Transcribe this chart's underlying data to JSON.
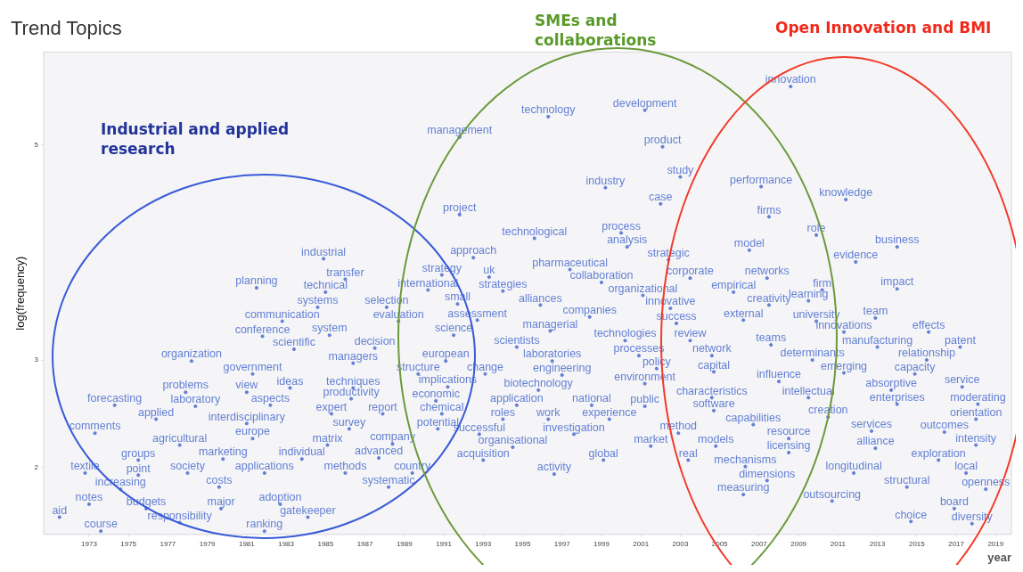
{
  "chart_data": {
    "type": "scatter",
    "title": "Trend Topics",
    "xlabel": "year",
    "ylabel": "log(frequency)",
    "xlim": [
      1970.7,
      2019.8
    ],
    "xticks": [
      1973,
      1975,
      1977,
      1979,
      1981,
      1983,
      1985,
      1987,
      1989,
      1991,
      1993,
      1995,
      1997,
      1999,
      2001,
      2003,
      2005,
      2007,
      2009,
      2011,
      2013,
      2015,
      2017,
      2019
    ],
    "ylim": [
      1.38,
      5.86
    ],
    "yticks": [
      2,
      3,
      5
    ],
    "grid": false,
    "legend": false,
    "marker": "circle",
    "annotations": [
      "Industrial and applied research",
      "SMEs and collaborations",
      "Open Innovation and BMI"
    ],
    "series": [
      {
        "color": "#6480d4",
        "x": [
          2008.6,
          1996.3,
          2001.2,
          1991.8,
          2002.1,
          2003,
          1999.2,
          2007.1,
          2011.4,
          2002,
          1991.8,
          2007.5,
          2000,
          2009.9,
          1995.6,
          2000.3,
          2014,
          2006.5,
          1984.9,
          1992.5,
          2002.4,
          2011.9,
          1997.4,
          1986,
          1990.9,
          1993.3,
          2003.5,
          2007.4,
          1999,
          1981.5,
          1985,
          1990.2,
          1994,
          2005.7,
          2010.2,
          2014,
          2001.1,
          1991.7,
          1984.6,
          1988.1,
          1995.9,
          2002.5,
          2007.5,
          2009.5,
          1982.8,
          1988.7,
          1992.7,
          1998.4,
          2002.8,
          2006.2,
          2009.9,
          2012.9,
          1981.8,
          1985.2,
          1991.5,
          1996.4,
          2000.2,
          2003.5,
          2011.3,
          2015.6,
          2007.6,
          2013,
          2017.2,
          1983.4,
          1987.5,
          1994.7,
          2000.9,
          2004.6,
          2009.7,
          2015.5,
          1978.2,
          1986.4,
          1991.1,
          1996.5,
          2001.8,
          2004.7,
          1981.3,
          1989.7,
          1993.1,
          1997,
          2011.3,
          2014.9,
          2008,
          1983.2,
          1986.4,
          1991.2,
          2001.2,
          1995.8,
          2013.7,
          2017.3,
          1977.9,
          1981,
          1986.3,
          1990.6,
          2004.6,
          2009.5,
          1974.3,
          1978.4,
          1982.2,
          1994.7,
          1998.5,
          2001.2,
          2004.7,
          2014,
          2018.1,
          1985.3,
          1987.9,
          1990.9,
          1976.4,
          1994,
          1996.3,
          1999.4,
          2010.5,
          2018,
          1981,
          2006.7,
          1986.2,
          1990.7,
          1973.3,
          1981.3,
          1992.8,
          1997.6,
          2002.9,
          2008.5,
          2012.7,
          2016.4,
          1977.6,
          1985.1,
          1988.4,
          1994.5,
          2001.5,
          2004.8,
          2008.5,
          2012.9,
          2018,
          1975.5,
          1979.8,
          1983.8,
          1987.7,
          1993,
          1999.1,
          2003.4,
          2006.3,
          2016.1,
          1972.8,
          1975.5,
          1978,
          1981.9,
          1986,
          1989.4,
          1996.6,
          2011.8,
          2017.5,
          2007.4,
          1974.6,
          1979.6,
          1988.2,
          2014.5,
          2018.5,
          2006.2,
          2010.7,
          1973,
          1975.9,
          1979.7,
          1982.7,
          2016.9,
          1984.1,
          1971.5,
          1977.6,
          2014.7,
          2017.8,
          1973.6,
          1981.9
        ],
        "values": [
          5.54,
          5.26,
          5.32,
          5.07,
          4.98,
          4.7,
          4.6,
          4.61,
          4.49,
          4.45,
          4.35,
          4.33,
          4.18,
          4.16,
          4.13,
          4.05,
          4.05,
          4.02,
          3.94,
          3.95,
          3.93,
          3.91,
          3.84,
          3.75,
          3.79,
          3.77,
          3.76,
          3.76,
          3.72,
          3.67,
          3.63,
          3.65,
          3.64,
          3.63,
          3.65,
          3.66,
          3.6,
          3.52,
          3.49,
          3.49,
          3.51,
          3.48,
          3.51,
          3.55,
          3.36,
          3.36,
          3.37,
          3.4,
          3.34,
          3.37,
          3.36,
          3.39,
          3.22,
          3.23,
          3.23,
          3.27,
          3.18,
          3.18,
          3.26,
          3.26,
          3.14,
          3.12,
          3.12,
          3.1,
          3.11,
          3.12,
          3.04,
          3.04,
          3.0,
          3.0,
          2.99,
          2.97,
          2.99,
          2.99,
          2.92,
          2.89,
          2.87,
          2.87,
          2.87,
          2.86,
          2.88,
          2.87,
          2.8,
          2.74,
          2.74,
          2.75,
          2.78,
          2.72,
          2.72,
          2.75,
          2.7,
          2.7,
          2.64,
          2.62,
          2.65,
          2.65,
          2.58,
          2.57,
          2.58,
          2.58,
          2.58,
          2.57,
          2.53,
          2.59,
          2.59,
          2.5,
          2.5,
          2.5,
          2.45,
          2.45,
          2.45,
          2.45,
          2.47,
          2.45,
          2.41,
          2.4,
          2.36,
          2.36,
          2.32,
          2.27,
          2.31,
          2.31,
          2.32,
          2.27,
          2.34,
          2.33,
          2.21,
          2.21,
          2.22,
          2.19,
          2.2,
          2.2,
          2.14,
          2.18,
          2.21,
          2.07,
          2.08,
          2.08,
          2.09,
          2.07,
          2.07,
          2.07,
          2.01,
          2.07,
          1.95,
          1.93,
          1.95,
          1.95,
          1.95,
          1.95,
          1.94,
          1.95,
          1.95,
          1.88,
          1.8,
          1.82,
          1.82,
          1.82,
          1.8,
          1.75,
          1.69,
          1.66,
          1.62,
          1.62,
          1.66,
          1.62,
          1.54,
          1.54,
          1.49,
          1.5,
          1.48,
          1.41,
          1.41
        ],
        "value_labels": [
          "innovation",
          "technology",
          "development",
          "management",
          "product",
          "study",
          "industry",
          "performance",
          "knowledge",
          "case",
          "project",
          "firms",
          "process",
          "role",
          "technological",
          "analysis",
          "business",
          "model",
          "industrial",
          "approach",
          "strategic",
          "evidence",
          "pharmaceutical",
          "transfer",
          "strategy",
          "uk",
          "corporate",
          "networks",
          "collaboration",
          "planning",
          "technical",
          "international",
          "strategies",
          "empirical",
          "firm",
          "impact",
          "organizational",
          "small",
          "systems",
          "selection",
          "alliances",
          "innovative",
          "creativity",
          "learning",
          "communication",
          "evaluation",
          "assessment",
          "companies",
          "success",
          "external",
          "university",
          "team",
          "conference",
          "system",
          "science",
          "managerial",
          "technologies",
          "review",
          "innovations",
          "effects",
          "teams",
          "manufacturing",
          "patent",
          "scientific",
          "decision",
          "scientists",
          "processes",
          "network",
          "determinants",
          "relationship",
          "organization",
          "managers",
          "european",
          "laboratories",
          "policy",
          "capital",
          "government",
          "structure",
          "change",
          "engineering",
          "emerging",
          "capacity",
          "influence",
          "ideas",
          "techniques",
          "implications",
          "environment",
          "biotechnology",
          "absorptive",
          "service",
          "problems",
          "view",
          "productivity",
          "economic",
          "characteristics",
          "intellectual",
          "forecasting",
          "laboratory",
          "aspects",
          "application",
          "national",
          "public",
          "software",
          "enterprises",
          "moderating",
          "expert",
          "report",
          "chemical",
          "applied",
          "roles",
          "work",
          "experience",
          "creation",
          "orientation",
          "interdisciplinary",
          "capabilities",
          "survey",
          "potential",
          "comments",
          "europe",
          "successful",
          "investigation",
          "method",
          "resource",
          "services",
          "outcomes",
          "agricultural",
          "matrix",
          "company",
          "organisational",
          "market",
          "models",
          "licensing",
          "alliance",
          "intensity",
          "groups",
          "marketing",
          "individual",
          "advanced",
          "acquisition",
          "global",
          "real",
          "mechanisms",
          "exploration",
          "textile",
          "point",
          "society",
          "applications",
          "methods",
          "country",
          "activity",
          "longitudinal",
          "local",
          "dimensions",
          "increasing",
          "costs",
          "systematic",
          "structural",
          "openness",
          "measuring",
          "outsourcing",
          "notes",
          "budgets",
          "major",
          "adoption",
          "board",
          "gatekeeper",
          "aid",
          "responsibility",
          "choice",
          "diversity",
          "course",
          "ranking"
        ]
      }
    ]
  }
}
